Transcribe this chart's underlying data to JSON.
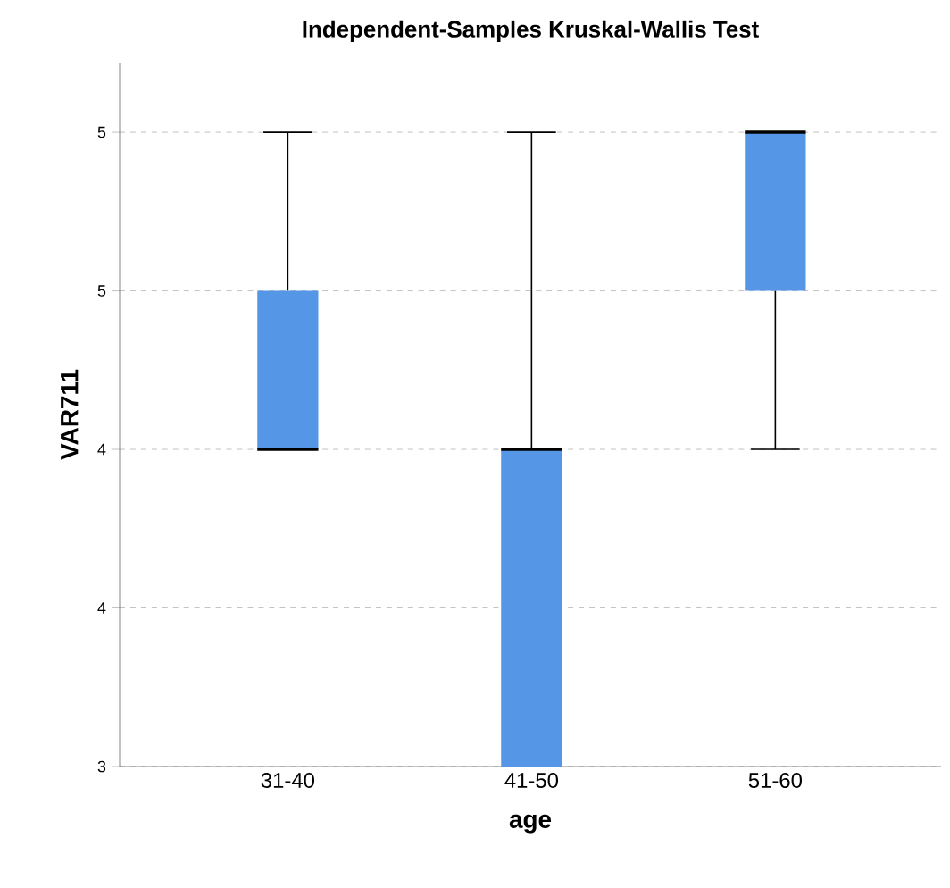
{
  "chart_data": {
    "type": "box",
    "title": "Independent-Samples Kruskal-Wallis Test",
    "xlabel": "age",
    "ylabel": "VAR711",
    "categories": [
      "31-40",
      "41-50",
      "51-60"
    ],
    "color": "#5596e6",
    "boxes": [
      {
        "low": 4,
        "q1": 4,
        "median": 4,
        "q3": 4.5,
        "high": 5
      },
      {
        "low": 3,
        "q1": 3,
        "median": 4,
        "q3": 4,
        "high": 5
      },
      {
        "low": 4,
        "q1": 4.5,
        "median": 5,
        "q3": 5,
        "high": 5
      }
    ],
    "ylim": [
      3,
      5.22
    ],
    "yticks": [
      3,
      {
        "value": 3.5,
        "label": "4"
      },
      4,
      {
        "value": 4.5,
        "label": "5"
      },
      5
    ],
    "grid": "y"
  }
}
